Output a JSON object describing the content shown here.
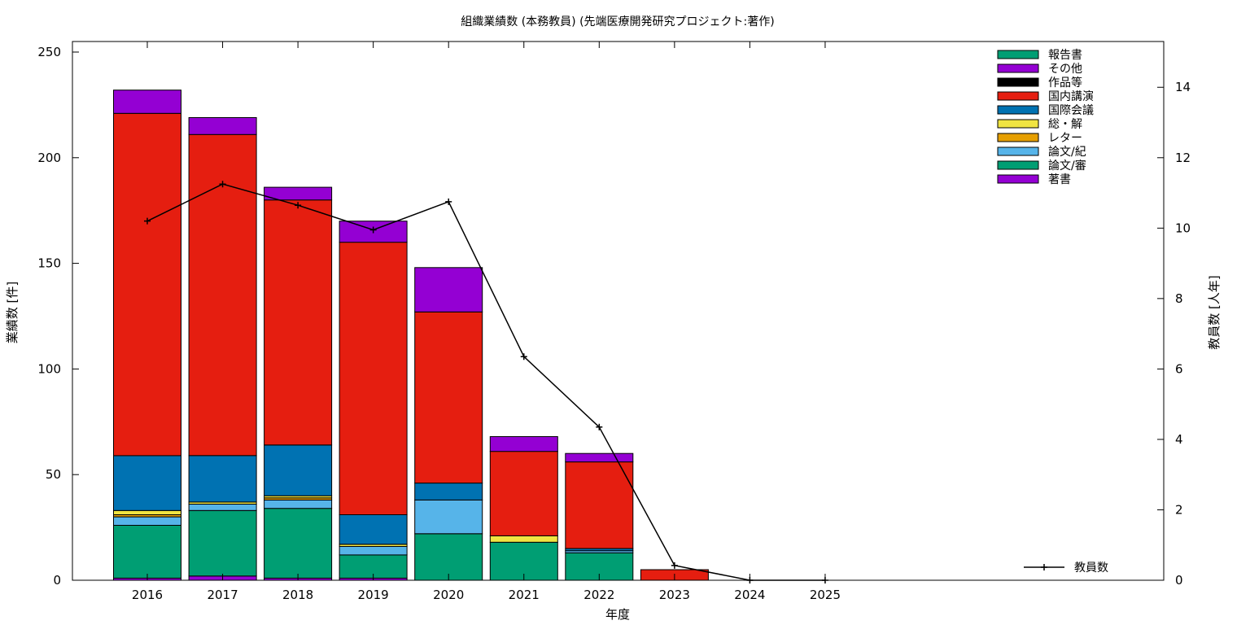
{
  "chart_data": {
    "type": "bar",
    "title": "組織業績数 (本務教員) (先端医療開発研究プロジェクト:著作)",
    "xlabel": "年度",
    "ylabel": "業績数 [件]",
    "y2label": "教員数 [人年]",
    "categories": [
      "2016",
      "2017",
      "2018",
      "2019",
      "2020",
      "2021",
      "2022",
      "2023",
      "2024",
      "2025"
    ],
    "ylim": [
      0,
      255
    ],
    "y2lim": [
      0,
      15.3
    ],
    "yticks": [
      0,
      50,
      100,
      150,
      200,
      250
    ],
    "y2ticks": [
      0,
      2,
      4,
      6,
      8,
      10,
      12,
      14
    ],
    "stacked": true,
    "legend_position": "top-right",
    "series": [
      {
        "name": "著書",
        "color": "#9400d3",
        "values": [
          1,
          2,
          1,
          1,
          0,
          0,
          0,
          0,
          0,
          0
        ]
      },
      {
        "name": "論文/審",
        "color": "#009e73",
        "values": [
          25,
          31,
          33,
          11,
          22,
          18,
          13,
          0,
          0,
          0
        ]
      },
      {
        "name": "論文/紀",
        "color": "#56b4e9",
        "values": [
          4,
          3,
          4,
          4,
          16,
          0,
          1,
          0,
          0,
          0
        ]
      },
      {
        "name": "レター",
        "color": "#e69f00",
        "values": [
          1,
          0,
          1,
          0,
          0,
          0,
          0,
          0,
          0,
          0
        ]
      },
      {
        "name": "総・解",
        "color": "#f0e442",
        "values": [
          2,
          1,
          1,
          1,
          0,
          3,
          0,
          0,
          0,
          0
        ]
      },
      {
        "name": "国際会議",
        "color": "#0072b2",
        "values": [
          26,
          22,
          24,
          14,
          8,
          0,
          1,
          0,
          0,
          0
        ]
      },
      {
        "name": "国内講演",
        "color": "#e51e10",
        "values": [
          162,
          152,
          116,
          129,
          81,
          40,
          41,
          5,
          0,
          0
        ]
      },
      {
        "name": "作品等",
        "color": "#000000",
        "values": [
          0,
          0,
          0,
          0,
          0,
          0,
          0,
          0,
          0,
          0
        ]
      },
      {
        "name": "その他",
        "color": "#9400d3",
        "values": [
          11,
          8,
          6,
          10,
          21,
          7,
          4,
          0,
          0,
          0
        ]
      },
      {
        "name": "報告書",
        "color": "#009e73",
        "values": [
          0,
          0,
          0,
          0,
          0,
          0,
          0,
          0,
          0,
          0
        ]
      }
    ],
    "line_series": {
      "name": "教員数",
      "axis": "y2",
      "color": "#000000",
      "values": [
        10.2,
        11.25,
        10.65,
        9.95,
        10.75,
        6.35,
        4.35,
        0.42,
        0,
        0
      ]
    }
  }
}
